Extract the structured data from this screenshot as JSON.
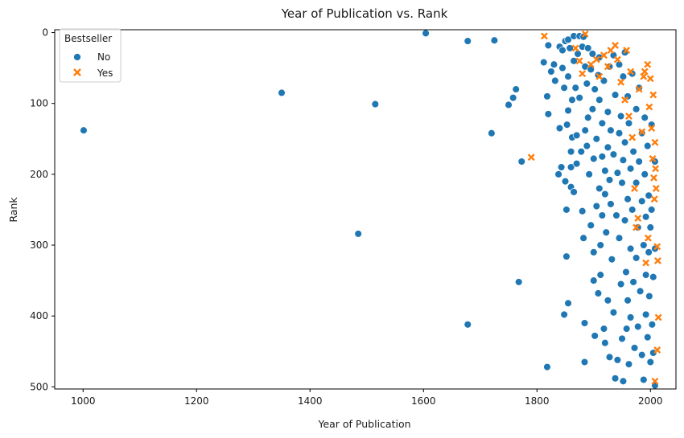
{
  "chart_data": {
    "type": "scatter",
    "title": "Year of Publication vs. Rank",
    "xlabel": "Year of Publication",
    "ylabel": "Rank",
    "xlim": [
      950,
      2045
    ],
    "ylim": [
      -4,
      503
    ],
    "y_inverted": true,
    "xticks": [
      1000,
      1200,
      1400,
      1600,
      1800,
      2000
    ],
    "yticks": [
      0,
      100,
      200,
      300,
      400,
      500
    ],
    "grid": false,
    "legend": {
      "title": "Bestseller",
      "placement": "top-left"
    },
    "series": [
      {
        "name": "No",
        "color": "#1f77b4",
        "marker": "circle",
        "points": [
          [
            1001,
            138
          ],
          [
            1350,
            85
          ],
          [
            1485,
            284
          ],
          [
            1515,
            101
          ],
          [
            1604,
            1
          ],
          [
            1678,
            12
          ],
          [
            1678,
            412
          ],
          [
            1725,
            11
          ],
          [
            1720,
            142
          ],
          [
            1750,
            102
          ],
          [
            1758,
            92
          ],
          [
            1763,
            80
          ],
          [
            1768,
            352
          ],
          [
            1773,
            182
          ],
          [
            1812,
            42
          ],
          [
            1818,
            90
          ],
          [
            1818,
            472
          ],
          [
            1820,
            115
          ],
          [
            1820,
            18
          ],
          [
            1825,
            55
          ],
          [
            1830,
            45
          ],
          [
            1832,
            68
          ],
          [
            1838,
            200
          ],
          [
            1840,
            135
          ],
          [
            1840,
            20
          ],
          [
            1843,
            190
          ],
          [
            1845,
            25
          ],
          [
            1845,
            50
          ],
          [
            1848,
            398
          ],
          [
            1848,
            78
          ],
          [
            1850,
            12
          ],
          [
            1850,
            210
          ],
          [
            1852,
            250
          ],
          [
            1852,
            316
          ],
          [
            1853,
            130
          ],
          [
            1855,
            10
          ],
          [
            1855,
            62
          ],
          [
            1855,
            110
          ],
          [
            1855,
            382
          ],
          [
            1858,
            22
          ],
          [
            1860,
            168
          ],
          [
            1860,
            190
          ],
          [
            1860,
            218
          ],
          [
            1862,
            95
          ],
          [
            1862,
            148
          ],
          [
            1865,
            5
          ],
          [
            1865,
            40
          ],
          [
            1865,
            225
          ],
          [
            1868,
            78
          ],
          [
            1870,
            145
          ],
          [
            1870,
            185
          ],
          [
            1872,
            30
          ],
          [
            1875,
            5
          ],
          [
            1875,
            92
          ],
          [
            1878,
            168
          ],
          [
            1880,
            20
          ],
          [
            1880,
            252
          ],
          [
            1882,
            6
          ],
          [
            1882,
            290
          ],
          [
            1884,
            410
          ],
          [
            1884,
            465
          ],
          [
            1885,
            48
          ],
          [
            1885,
            138
          ],
          [
            1888,
            72
          ],
          [
            1888,
            160
          ],
          [
            1890,
            22
          ],
          [
            1890,
            120
          ],
          [
            1892,
            200
          ],
          [
            1895,
            52
          ],
          [
            1895,
            272
          ],
          [
            1898,
            30
          ],
          [
            1898,
            108
          ],
          [
            1900,
            178
          ],
          [
            1900,
            310
          ],
          [
            1900,
            350
          ],
          [
            1902,
            80
          ],
          [
            1902,
            428
          ],
          [
            1905,
            150
          ],
          [
            1905,
            245
          ],
          [
            1908,
            60
          ],
          [
            1908,
            368
          ],
          [
            1910,
            35
          ],
          [
            1910,
            95
          ],
          [
            1910,
            220
          ],
          [
            1912,
            300
          ],
          [
            1912,
            342
          ],
          [
            1915,
            128
          ],
          [
            1915,
            258
          ],
          [
            1915,
            175
          ],
          [
            1918,
            68
          ],
          [
            1918,
            418
          ],
          [
            1920,
            195
          ],
          [
            1920,
            228
          ],
          [
            1920,
            438
          ],
          [
            1922,
            282
          ],
          [
            1925,
            112
          ],
          [
            1925,
            162
          ],
          [
            1925,
            378
          ],
          [
            1928,
            48
          ],
          [
            1928,
            208
          ],
          [
            1928,
            458
          ],
          [
            1930,
            138
          ],
          [
            1930,
            242
          ],
          [
            1932,
            320
          ],
          [
            1935,
            32
          ],
          [
            1935,
            172
          ],
          [
            1935,
            395
          ],
          [
            1938,
            88
          ],
          [
            1938,
            488
          ],
          [
            1940,
            258
          ],
          [
            1942,
            198
          ],
          [
            1942,
            462
          ],
          [
            1945,
            45
          ],
          [
            1945,
            142
          ],
          [
            1945,
            290
          ],
          [
            1948,
            118
          ],
          [
            1948,
            355
          ],
          [
            1950,
            212
          ],
          [
            1950,
            432
          ],
          [
            1952,
            62
          ],
          [
            1952,
            180
          ],
          [
            1952,
            492
          ],
          [
            1955,
            28
          ],
          [
            1955,
            155
          ],
          [
            1955,
            265
          ],
          [
            1957,
            338
          ],
          [
            1958,
            418
          ],
          [
            1960,
            90
          ],
          [
            1960,
            235
          ],
          [
            1960,
            378
          ],
          [
            1962,
            128
          ],
          [
            1962,
            468
          ],
          [
            1965,
            192
          ],
          [
            1965,
            305
          ],
          [
            1965,
            402
          ],
          [
            1968,
            58
          ],
          [
            1968,
            250
          ],
          [
            1970,
            168
          ],
          [
            1970,
            352
          ],
          [
            1972,
            445
          ],
          [
            1975,
            108
          ],
          [
            1975,
            212
          ],
          [
            1975,
            318
          ],
          [
            1978,
            275
          ],
          [
            1978,
            415
          ],
          [
            1980,
            78
          ],
          [
            1980,
            182
          ],
          [
            1982,
            365
          ],
          [
            1985,
            142
          ],
          [
            1985,
            238
          ],
          [
            1985,
            455
          ],
          [
            1988,
            300
          ],
          [
            1988,
            490
          ],
          [
            1990,
            120
          ],
          [
            1990,
            200
          ],
          [
            1992,
            260
          ],
          [
            1992,
            342
          ],
          [
            1992,
            398
          ],
          [
            1995,
            160
          ],
          [
            1995,
            430
          ],
          [
            1997,
            230
          ],
          [
            1997,
            310
          ],
          [
            1998,
            372
          ],
          [
            2000,
            275
          ],
          [
            2000,
            465
          ],
          [
            2002,
            130
          ],
          [
            2002,
            250
          ],
          [
            2003,
            412
          ],
          [
            2005,
            345
          ],
          [
            2005,
            452
          ],
          [
            2008,
            182
          ],
          [
            2008,
            498
          ],
          [
            2008,
            305
          ]
        ]
      },
      {
        "name": "Yes",
        "color": "#ff7f0e",
        "marker": "x",
        "points": [
          [
            1790,
            176
          ],
          [
            1813,
            5
          ],
          [
            1868,
            22
          ],
          [
            1875,
            40
          ],
          [
            1880,
            58
          ],
          [
            1885,
            2
          ],
          [
            1895,
            45
          ],
          [
            1905,
            38
          ],
          [
            1910,
            62
          ],
          [
            1918,
            32
          ],
          [
            1925,
            48
          ],
          [
            1930,
            25
          ],
          [
            1938,
            18
          ],
          [
            1942,
            38
          ],
          [
            1948,
            70
          ],
          [
            1955,
            95
          ],
          [
            1958,
            25
          ],
          [
            1962,
            118
          ],
          [
            1965,
            55
          ],
          [
            1968,
            148
          ],
          [
            1972,
            220
          ],
          [
            1975,
            275
          ],
          [
            1978,
            262
          ],
          [
            1980,
            80
          ],
          [
            1985,
            140
          ],
          [
            1988,
            62
          ],
          [
            1990,
            55
          ],
          [
            1992,
            325
          ],
          [
            1995,
            45
          ],
          [
            1996,
            290
          ],
          [
            1998,
            105
          ],
          [
            2000,
            65
          ],
          [
            2002,
            135
          ],
          [
            2004,
            178
          ],
          [
            2005,
            88
          ],
          [
            2006,
            205
          ],
          [
            2007,
            235
          ],
          [
            2008,
            155
          ],
          [
            2009,
            192
          ],
          [
            2010,
            220
          ],
          [
            2012,
            302
          ],
          [
            2012,
            448
          ],
          [
            2013,
            322
          ],
          [
            2014,
            402
          ],
          [
            2008,
            492
          ]
        ]
      }
    ]
  }
}
